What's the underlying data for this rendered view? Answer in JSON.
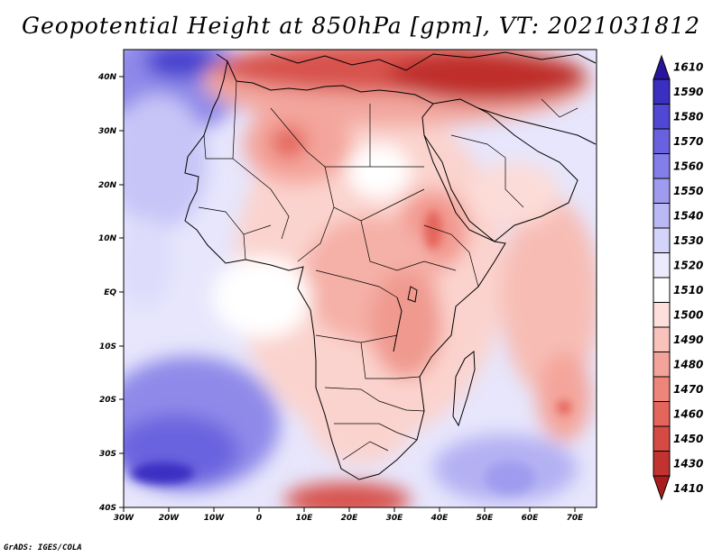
{
  "title": "Geopotential Height at 850hPa [gpm], VT: 2021031812",
  "footer": "GrADS: IGES/COLA",
  "map": {
    "variable": "Geopotential Height",
    "level": "850hPa",
    "units": "gpm",
    "valid_time": "2021031812",
    "lon_range": [
      -30,
      75
    ],
    "lat_range": [
      -40,
      45
    ],
    "x_ticks": [
      "30W",
      "20W",
      "10W",
      "0",
      "10E",
      "20E",
      "30E",
      "40E",
      "50E",
      "60E",
      "70E"
    ],
    "y_ticks": [
      "40N",
      "30N",
      "20N",
      "10N",
      "EQ",
      "10S",
      "20S",
      "30S",
      "40S"
    ]
  },
  "colorbar": {
    "labels": [
      "1610",
      "1590",
      "1580",
      "1570",
      "1560",
      "1550",
      "1540",
      "1530",
      "1520",
      "1510",
      "1500",
      "1490",
      "1480",
      "1470",
      "1460",
      "1450",
      "1430",
      "1410"
    ],
    "colors": [
      "#27169c",
      "#3b2fc2",
      "#5048d4",
      "#6962e0",
      "#837ee8",
      "#9f9cef",
      "#bab8f5",
      "#d4d3fa",
      "#ecebfd",
      "#ffffff",
      "#fde0dc",
      "#f9c2bb",
      "#f4a39a",
      "#ee857a",
      "#e4655c",
      "#d64a44",
      "#c23330",
      "#a81e1f"
    ]
  }
}
